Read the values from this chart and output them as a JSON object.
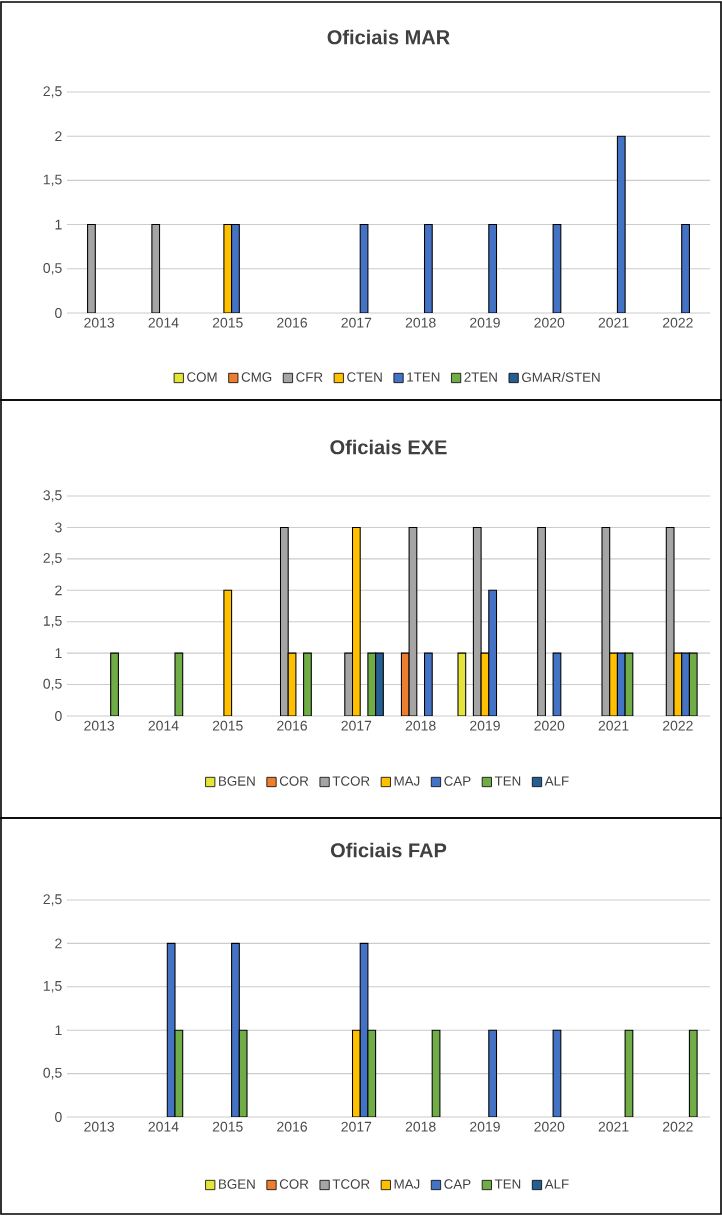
{
  "chart_data": [
    {
      "type": "bar",
      "title": "Oficiais MAR",
      "categories": [
        "2013",
        "2014",
        "2015",
        "2016",
        "2017",
        "2018",
        "2019",
        "2020",
        "2021",
        "2022"
      ],
      "series": [
        {
          "name": "COM",
          "color": "#e4e43a",
          "values": [
            0,
            0,
            0,
            0,
            0,
            0,
            0,
            0,
            0,
            0
          ]
        },
        {
          "name": "CMG",
          "color": "#ed7d31",
          "values": [
            0,
            0,
            0,
            0,
            0,
            0,
            0,
            0,
            0,
            0
          ]
        },
        {
          "name": "CFR",
          "color": "#a5a5a5",
          "values": [
            1,
            1,
            0,
            0,
            0,
            0,
            0,
            0,
            0,
            0
          ]
        },
        {
          "name": "CTEN",
          "color": "#ffc000",
          "values": [
            0,
            0,
            1,
            0,
            0,
            0,
            0,
            0,
            0,
            0
          ]
        },
        {
          "name": "1TEN",
          "color": "#4472c4",
          "values": [
            0,
            0,
            1,
            0,
            1,
            1,
            1,
            1,
            2,
            1
          ]
        },
        {
          "name": "2TEN",
          "color": "#70ad47",
          "values": [
            0,
            0,
            0,
            0,
            0,
            0,
            0,
            0,
            0,
            0
          ]
        },
        {
          "name": "GMAR/STEN",
          "color": "#255e91",
          "values": [
            0,
            0,
            0,
            0,
            0,
            0,
            0,
            0,
            0,
            0
          ]
        }
      ],
      "ylim": [
        0,
        2.5
      ],
      "yticks": [
        0,
        {
          "value": 0.5,
          "label": "0,5"
        },
        1,
        {
          "value": 1.5,
          "label": "1,5"
        },
        2,
        {
          "value": 2.5,
          "label": "2,5"
        }
      ],
      "grid": "y",
      "legend": "bottom"
    },
    {
      "type": "bar",
      "title": "Oficiais EXE",
      "categories": [
        "2013",
        "2014",
        "2015",
        "2016",
        "2017",
        "2018",
        "2019",
        "2020",
        "2021",
        "2022"
      ],
      "series": [
        {
          "name": "BGEN",
          "color": "#e4e43a",
          "values": [
            0,
            0,
            0,
            0,
            0,
            0,
            1,
            0,
            0,
            0
          ]
        },
        {
          "name": "COR",
          "color": "#ed7d31",
          "values": [
            0,
            0,
            0,
            0,
            0,
            1,
            0,
            0,
            0,
            0
          ]
        },
        {
          "name": "TCOR",
          "color": "#a5a5a5",
          "values": [
            0,
            0,
            0,
            3,
            1,
            3,
            3,
            3,
            3,
            3
          ]
        },
        {
          "name": "MAJ",
          "color": "#ffc000",
          "values": [
            0,
            0,
            2,
            1,
            3,
            0,
            1,
            0,
            1,
            1
          ]
        },
        {
          "name": "CAP",
          "color": "#4472c4",
          "values": [
            0,
            0,
            0,
            0,
            0,
            1,
            2,
            1,
            1,
            1
          ]
        },
        {
          "name": "TEN",
          "color": "#70ad47",
          "values": [
            1,
            1,
            0,
            1,
            1,
            0,
            0,
            0,
            1,
            1
          ]
        },
        {
          "name": "ALF",
          "color": "#255e91",
          "values": [
            0,
            0,
            0,
            0,
            1,
            0,
            0,
            0,
            0,
            0
          ]
        }
      ],
      "ylim": [
        0,
        3.5
      ],
      "yticks": [
        0,
        {
          "value": 0.5,
          "label": "0,5"
        },
        1,
        {
          "value": 1.5,
          "label": "1,5"
        },
        2,
        {
          "value": 2.5,
          "label": "2,5"
        },
        3,
        {
          "value": 3.5,
          "label": "3,5"
        }
      ],
      "grid": "y",
      "legend": "bottom"
    },
    {
      "type": "bar",
      "title": "Oficiais FAP",
      "categories": [
        "2013",
        "2014",
        "2015",
        "2016",
        "2017",
        "2018",
        "2019",
        "2020",
        "2021",
        "2022"
      ],
      "series": [
        {
          "name": "BGEN",
          "color": "#e4e43a",
          "values": [
            0,
            0,
            0,
            0,
            0,
            0,
            0,
            0,
            0,
            0
          ]
        },
        {
          "name": "COR",
          "color": "#ed7d31",
          "values": [
            0,
            0,
            0,
            0,
            0,
            0,
            0,
            0,
            0,
            0
          ]
        },
        {
          "name": "TCOR",
          "color": "#a5a5a5",
          "values": [
            0,
            0,
            0,
            0,
            0,
            0,
            0,
            0,
            0,
            0
          ]
        },
        {
          "name": "MAJ",
          "color": "#ffc000",
          "values": [
            0,
            0,
            0,
            0,
            1,
            0,
            0,
            0,
            0,
            0
          ]
        },
        {
          "name": "CAP",
          "color": "#4472c4",
          "values": [
            0,
            2,
            2,
            0,
            2,
            0,
            1,
            1,
            0,
            0
          ]
        },
        {
          "name": "TEN",
          "color": "#70ad47",
          "values": [
            0,
            1,
            1,
            0,
            1,
            1,
            0,
            0,
            1,
            1
          ]
        },
        {
          "name": "ALF",
          "color": "#255e91",
          "values": [
            0,
            0,
            0,
            0,
            0,
            0,
            0,
            0,
            0,
            0
          ]
        }
      ],
      "ylim": [
        0,
        2.5
      ],
      "yticks": [
        0,
        {
          "value": 0.5,
          "label": "0,5"
        },
        1,
        {
          "value": 1.5,
          "label": "1,5"
        },
        2,
        {
          "value": 2.5,
          "label": "2,5"
        }
      ],
      "grid": "y",
      "legend": "bottom"
    }
  ]
}
